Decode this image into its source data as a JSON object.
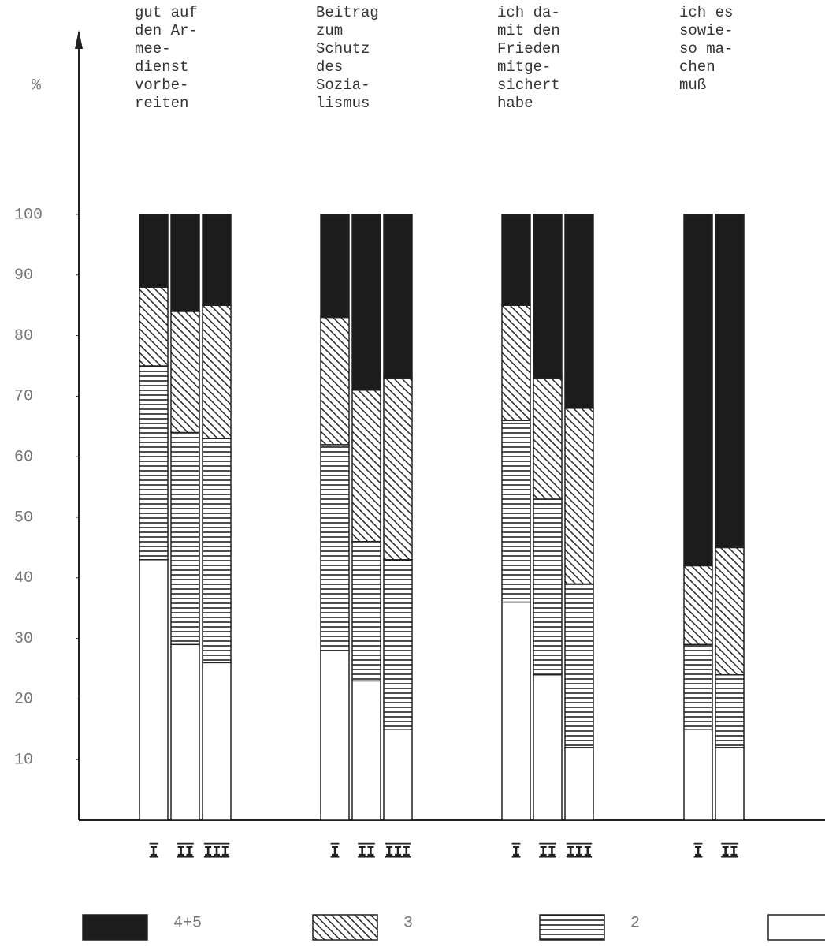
{
  "chart_data": {
    "type": "stacked_bar",
    "y_label": "%",
    "groups": [
      {
        "title": [
          "gut auf",
          "den Ar-",
          "mee-",
          "dienst",
          "vorbe-",
          "reiten"
        ],
        "categories": [
          "I",
          "II",
          "III"
        ]
      },
      {
        "title": [
          "Beitrag",
          "zum",
          "Schutz",
          "des",
          "Sozia-",
          "lismus"
        ],
        "categories": [
          "I",
          "II",
          "III"
        ]
      },
      {
        "title": [
          "ich da-",
          "mit den",
          "Frieden",
          "mitge-",
          "sichert",
          "habe"
        ],
        "categories": [
          "I",
          "II",
          "III"
        ]
      },
      {
        "title": [
          "ich es",
          "sowie-",
          "so ma-",
          "chen",
          "muß"
        ],
        "categories": [
          "I",
          "II"
        ]
      }
    ],
    "series": [
      {
        "name": null,
        "color": "#ffffff",
        "pattern": "none",
        "values": [
          43,
          29,
          26,
          28,
          23,
          15,
          36,
          24,
          12,
          15,
          12
        ]
      },
      {
        "name": "2",
        "color": "#222222",
        "pattern": "horizontal",
        "values": [
          32,
          35,
          37,
          34,
          23,
          28,
          30,
          29,
          27,
          14,
          12
        ]
      },
      {
        "name": "3",
        "color": "#222222",
        "pattern": "diagonal",
        "values": [
          13,
          20,
          22,
          21,
          25,
          30,
          19,
          20,
          29,
          13,
          21
        ]
      },
      {
        "name": "4+5",
        "color": "#1c1c1c",
        "pattern": "solid",
        "values": [
          12,
          16,
          15,
          17,
          29,
          27,
          15,
          27,
          32,
          58,
          55
        ]
      }
    ],
    "ylim": [
      0,
      100
    ],
    "yticks": [
      10,
      20,
      30,
      40,
      50,
      60,
      70,
      80,
      90,
      100
    ]
  }
}
